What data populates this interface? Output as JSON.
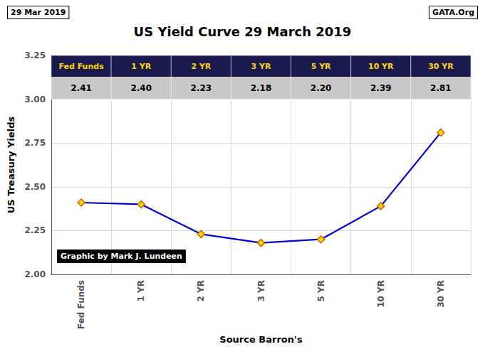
{
  "chart_data": {
    "type": "line",
    "title": "US Yield Curve 29 March 2019",
    "xlabel": "Source Barron's",
    "ylabel": "US Treasury Yields",
    "annotations": [
      "29 Mar 2019",
      "GATA.Org",
      "Graphic by Mark J. Lundeen"
    ],
    "categories": [
      "Fed Funds",
      "1 YR",
      "2 YR",
      "3 YR",
      "5 YR",
      "10 YR",
      "30 YR"
    ],
    "values": [
      2.41,
      2.4,
      2.23,
      2.18,
      2.2,
      2.39,
      2.81
    ],
    "value_labels": [
      "2.41",
      "2.40",
      "2.23",
      "2.18",
      "2.20",
      "2.39",
      "2.81"
    ],
    "data_labels": true,
    "color": "#0000CC",
    "marker": "diamond",
    "ylim": [
      2.0,
      3.25
    ],
    "yticks": [
      {
        "value": 2.0,
        "label": "2.00"
      },
      {
        "value": 2.25,
        "label": "2.25"
      },
      {
        "value": 2.5,
        "label": "2.50"
      },
      {
        "value": 2.75,
        "label": "2.75"
      },
      {
        "value": 3.0,
        "label": "3.00"
      },
      {
        "value": 3.25,
        "label": "3.25"
      }
    ],
    "grid": true
  }
}
